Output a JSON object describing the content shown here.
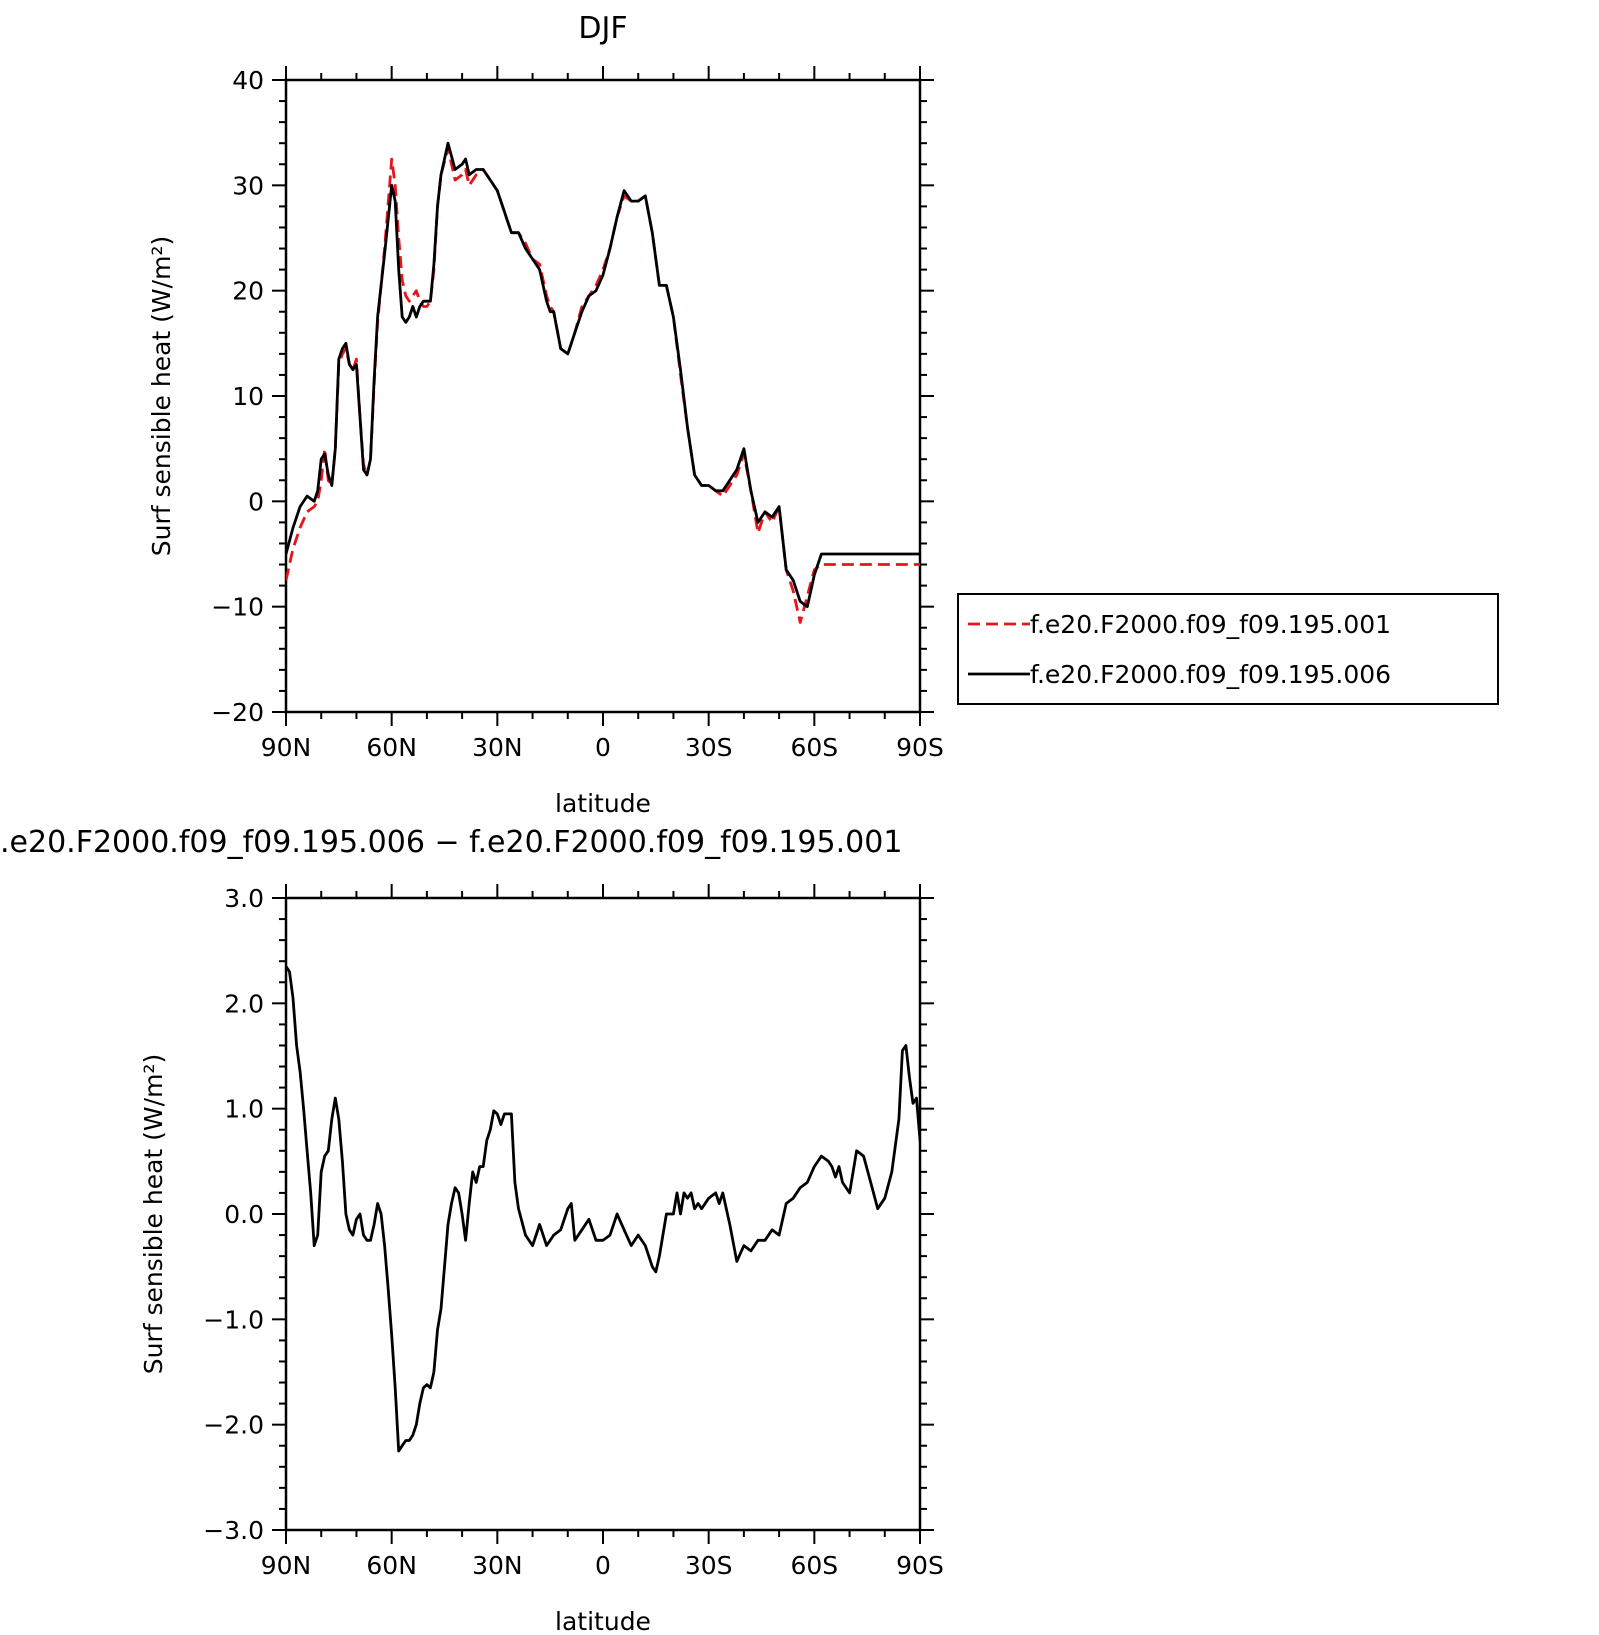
{
  "chart_data": [
    {
      "type": "line",
      "title": "DJF",
      "xlabel": "latitude",
      "ylabel": "Surf sensible heat (W/m²)",
      "xlim": [
        90,
        -90
      ],
      "ylim": [
        -20,
        40
      ],
      "xticks": [
        90,
        60,
        30,
        0,
        -30,
        -60,
        -90
      ],
      "xtick_labels": [
        "90N",
        "60N",
        "30N",
        "0",
        "30S",
        "60S",
        "90S"
      ],
      "yticks": [
        -20,
        -10,
        0,
        10,
        20,
        30,
        40
      ],
      "ytick_labels": [
        "−20",
        "−10",
        "0",
        "10",
        "20",
        "30",
        "40"
      ],
      "legend_position": "right",
      "series": [
        {
          "name": "f.e20.F2000.f09_f09.195.001",
          "color": "#e8141b",
          "style": "dashed",
          "x": [
            90,
            88,
            86,
            84,
            82,
            81,
            80,
            79,
            78,
            77,
            76,
            75,
            74,
            73,
            72,
            71,
            70,
            69,
            68,
            67,
            66,
            65,
            64,
            62,
            60,
            59,
            58,
            57,
            56,
            55,
            54,
            53,
            52,
            51,
            50,
            49,
            48,
            47,
            46,
            44,
            42,
            40,
            39,
            38,
            36,
            34,
            32,
            30,
            28,
            26,
            24,
            22,
            20,
            18,
            16,
            15,
            14,
            12,
            10,
            8,
            6,
            4,
            2,
            0,
            -2,
            -4,
            -6,
            -8,
            -10,
            -12,
            -14,
            -16,
            -18,
            -20,
            -22,
            -24,
            -26,
            -28,
            -30,
            -32,
            -34,
            -36,
            -38,
            -40,
            -42,
            -44,
            -46,
            -48,
            -50,
            -52,
            -54,
            -56,
            -58,
            -60,
            -62,
            -64,
            -66,
            -68,
            -70,
            -72,
            -74,
            -76,
            -78,
            -80,
            -82,
            -84,
            -86,
            -88,
            -90
          ],
          "values": [
            -7.5,
            -4.5,
            -2.5,
            -1.0,
            -0.5,
            0.0,
            2.0,
            5.0,
            2.0,
            1.5,
            5.0,
            13.0,
            14.0,
            14.5,
            13.0,
            12.5,
            13.5,
            8.0,
            3.5,
            2.5,
            4.0,
            11.0,
            17.0,
            24.0,
            32.5,
            30.0,
            25.0,
            21.0,
            19.5,
            19.0,
            19.5,
            20.0,
            19.0,
            18.5,
            18.5,
            19.0,
            22.0,
            28.0,
            31.0,
            33.5,
            30.5,
            31.0,
            31.5,
            30.0,
            31.0,
            31.5,
            30.5,
            29.5,
            27.5,
            25.5,
            25.5,
            24.5,
            23.0,
            22.5,
            19.5,
            18.5,
            18.0,
            14.5,
            14.0,
            16.0,
            18.5,
            19.5,
            20.5,
            22.0,
            24.0,
            27.0,
            29.0,
            28.5,
            28.5,
            29.0,
            25.5,
            20.5,
            20.5,
            17.5,
            12.0,
            7.0,
            2.5,
            1.5,
            1.5,
            1.0,
            0.5,
            1.5,
            2.5,
            4.5,
            1.0,
            -3.0,
            -1.0,
            -2.0,
            -0.5,
            -6.5,
            -8.5,
            -11.5,
            -9.0,
            -6.5,
            -6.0,
            -6.0,
            -6.0,
            -6.0,
            -6.0,
            -6.0,
            -6.0,
            -6.0,
            -6.0,
            -6.0,
            -6.0,
            -6.0,
            -6.0,
            -6.0,
            -6.0
          ]
        },
        {
          "name": "f.e20.F2000.f09_f09.195.006",
          "color": "#000000",
          "style": "solid",
          "x": [
            90,
            88,
            86,
            84,
            82,
            81,
            80,
            79,
            78,
            77,
            76,
            75,
            74,
            73,
            72,
            71,
            70,
            69,
            68,
            67,
            66,
            65,
            64,
            62,
            60,
            59,
            58,
            57,
            56,
            55,
            54,
            53,
            52,
            51,
            50,
            49,
            48,
            47,
            46,
            44,
            42,
            40,
            39,
            38,
            36,
            34,
            32,
            30,
            28,
            26,
            24,
            22,
            20,
            18,
            16,
            15,
            14,
            12,
            10,
            8,
            6,
            4,
            2,
            0,
            -2,
            -4,
            -6,
            -8,
            -10,
            -12,
            -14,
            -16,
            -18,
            -20,
            -22,
            -24,
            -26,
            -28,
            -30,
            -32,
            -34,
            -36,
            -38,
            -40,
            -42,
            -44,
            -46,
            -48,
            -50,
            -52,
            -54,
            -56,
            -58,
            -60,
            -62,
            -64,
            -66,
            -68,
            -70,
            -72,
            -74,
            -76,
            -78,
            -80,
            -82,
            -84,
            -86,
            -88,
            -90
          ],
          "values": [
            -5.0,
            -2.5,
            -0.5,
            0.5,
            0.0,
            1.0,
            4.0,
            4.5,
            2.5,
            1.5,
            5.0,
            13.5,
            14.5,
            15.0,
            13.0,
            12.5,
            13.0,
            8.0,
            3.0,
            2.5,
            4.0,
            11.5,
            17.5,
            23.5,
            30.0,
            28.5,
            22.0,
            17.5,
            17.0,
            17.5,
            18.5,
            17.5,
            18.5,
            19.0,
            19.0,
            19.0,
            22.5,
            28.0,
            31.0,
            34.0,
            31.5,
            32.0,
            32.5,
            31.0,
            31.5,
            31.5,
            30.5,
            29.5,
            27.5,
            25.5,
            25.5,
            24.0,
            23.0,
            22.0,
            19.0,
            18.0,
            18.0,
            14.5,
            14.0,
            16.0,
            18.0,
            19.5,
            20.0,
            21.5,
            24.0,
            27.0,
            29.5,
            28.5,
            28.5,
            29.0,
            25.5,
            20.5,
            20.5,
            17.5,
            12.5,
            7.0,
            2.5,
            1.5,
            1.5,
            1.0,
            1.0,
            2.0,
            3.0,
            5.0,
            1.0,
            -2.0,
            -1.0,
            -1.5,
            -0.5,
            -6.5,
            -7.5,
            -9.5,
            -10.0,
            -7.0,
            -5.0,
            -5.0,
            -5.0,
            -5.0,
            -5.0,
            -5.0,
            -5.0,
            -5.0,
            -5.0,
            -5.0,
            -5.0,
            -5.0,
            -5.0,
            -5.0,
            -5.0
          ]
        }
      ]
    },
    {
      "type": "line",
      "title": ".e20.F2000.f09_f09.195.006 − f.e20.F2000.f09_f09.195.001",
      "xlabel": "latitude",
      "ylabel": "Surf sensible heat (W/m²)",
      "xlim": [
        90,
        -90
      ],
      "ylim": [
        -3.0,
        3.0
      ],
      "xticks": [
        90,
        60,
        30,
        0,
        -30,
        -60,
        -90
      ],
      "xtick_labels": [
        "90N",
        "60N",
        "30N",
        "0",
        "30S",
        "60S",
        "90S"
      ],
      "yticks": [
        -3,
        -2,
        -1,
        0,
        1,
        2,
        3
      ],
      "ytick_labels": [
        "−3.0",
        "−2.0",
        "−1.0",
        "0.0",
        "1.0",
        "2.0",
        "3.0"
      ],
      "series": [
        {
          "color": "#000000",
          "style": "solid",
          "x": [
            90,
            89,
            88,
            87,
            86,
            85,
            84,
            83,
            82,
            81,
            80,
            79,
            78,
            77,
            76,
            75,
            74,
            73,
            72,
            71,
            70,
            69,
            68,
            67,
            66,
            65,
            64,
            63,
            62,
            61,
            60,
            59,
            58,
            57,
            56,
            55,
            54,
            53,
            52,
            51,
            50,
            49,
            48,
            47,
            46,
            45,
            44,
            43,
            42,
            41,
            40,
            39,
            38,
            37,
            36,
            35,
            34,
            33,
            32,
            31,
            30,
            29,
            28,
            27,
            26,
            25,
            24,
            22,
            20,
            18,
            16,
            14,
            12,
            10,
            9,
            8,
            6,
            4,
            2,
            0,
            -2,
            -4,
            -6,
            -8,
            -10,
            -12,
            -14,
            -15,
            -16,
            -18,
            -20,
            -21,
            -22,
            -23,
            -24,
            -25,
            -26,
            -27,
            -28,
            -30,
            -32,
            -33,
            -34,
            -36,
            -38,
            -40,
            -42,
            -44,
            -46,
            -48,
            -50,
            -52,
            -54,
            -56,
            -58,
            -60,
            -62,
            -64,
            -65,
            -66,
            -67,
            -68,
            -70,
            -72,
            -74,
            -76,
            -78,
            -80,
            -82,
            -84,
            -85,
            -86,
            -87,
            -88,
            -89,
            -90
          ],
          "values": [
            2.35,
            2.3,
            2.05,
            1.6,
            1.35,
            1.0,
            0.6,
            0.2,
            -0.3,
            -0.2,
            0.4,
            0.55,
            0.6,
            0.9,
            1.1,
            0.9,
            0.5,
            0.0,
            -0.15,
            -0.2,
            -0.05,
            0.0,
            -0.2,
            -0.25,
            -0.25,
            -0.1,
            0.1,
            0.0,
            -0.3,
            -0.7,
            -1.15,
            -1.65,
            -2.25,
            -2.2,
            -2.15,
            -2.15,
            -2.1,
            -2.0,
            -1.8,
            -1.65,
            -1.62,
            -1.65,
            -1.5,
            -1.1,
            -0.9,
            -0.5,
            -0.1,
            0.1,
            0.25,
            0.2,
            0.0,
            -0.25,
            0.1,
            0.4,
            0.3,
            0.45,
            0.45,
            0.7,
            0.8,
            0.98,
            0.95,
            0.85,
            0.95,
            0.95,
            0.95,
            0.3,
            0.05,
            -0.2,
            -0.3,
            -0.1,
            -0.3,
            -0.2,
            -0.15,
            0.05,
            0.1,
            -0.25,
            -0.15,
            -0.05,
            -0.25,
            -0.25,
            -0.2,
            0.0,
            -0.15,
            -0.3,
            -0.2,
            -0.3,
            -0.5,
            -0.55,
            -0.4,
            0.0,
            0.0,
            0.2,
            0.0,
            0.2,
            0.15,
            0.2,
            0.05,
            0.1,
            0.05,
            0.15,
            0.2,
            0.1,
            0.2,
            -0.1,
            -0.45,
            -0.3,
            -0.35,
            -0.25,
            -0.25,
            -0.15,
            -0.2,
            0.1,
            0.15,
            0.25,
            0.3,
            0.45,
            0.55,
            0.5,
            0.45,
            0.35,
            0.45,
            0.3,
            0.2,
            0.6,
            0.55,
            0.3,
            0.05,
            0.15,
            0.4,
            0.9,
            1.55,
            1.6,
            1.3,
            1.05,
            1.1,
            0.7
          ]
        }
      ]
    }
  ]
}
